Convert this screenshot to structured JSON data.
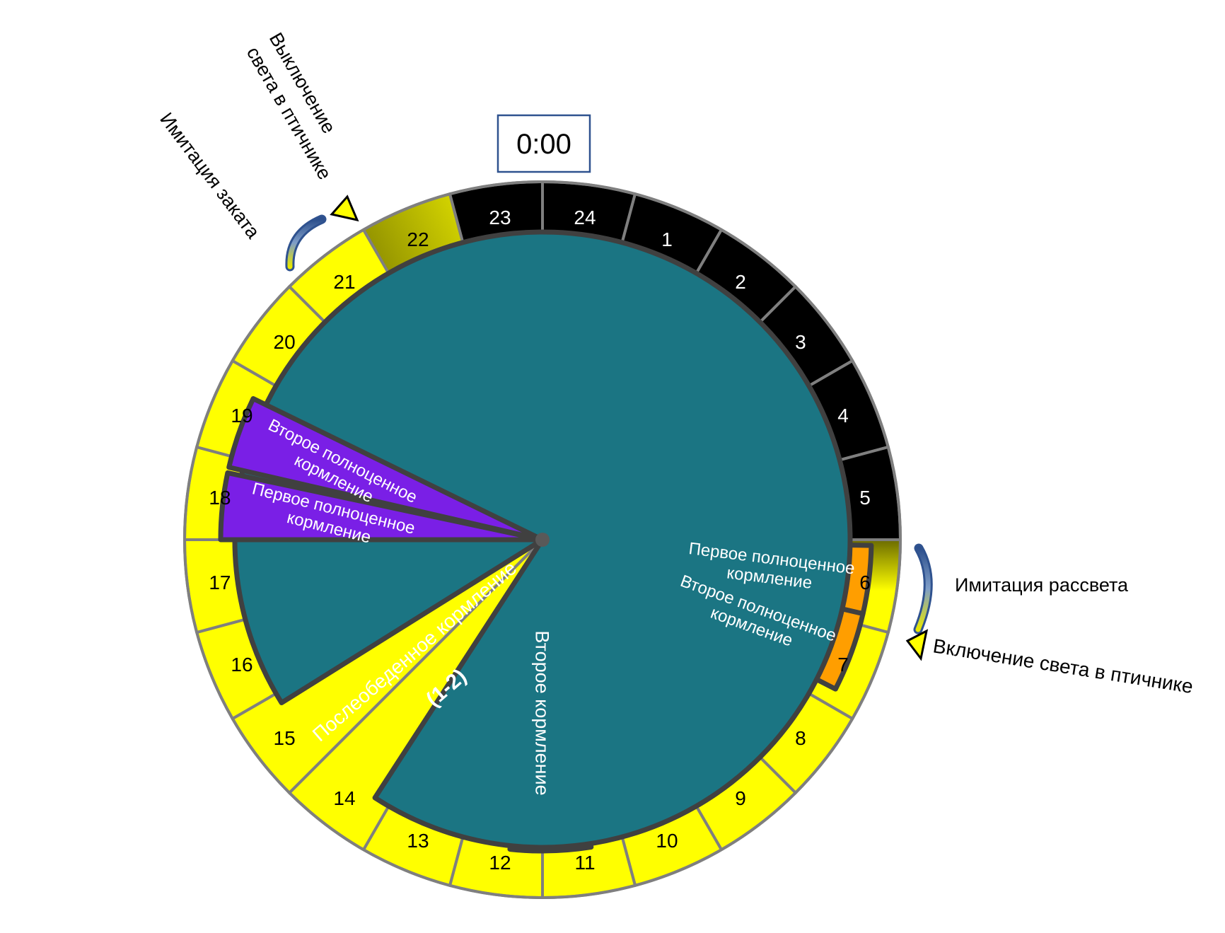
{
  "clock": {
    "label": "0:00"
  },
  "hours": [
    "24",
    "1",
    "2",
    "3",
    "4",
    "5",
    "6",
    "7",
    "8",
    "9",
    "10",
    "11",
    "12",
    "13",
    "14",
    "15",
    "16",
    "17",
    "18",
    "19",
    "20",
    "21",
    "22",
    "23"
  ],
  "sector_colors": {
    "night": "#000000",
    "light": "#ffff00",
    "sunset_from": "#ffff00",
    "sunset_to": "#6b6b00",
    "dawn_from": "#ffff00",
    "dawn_to": "#6b6b00",
    "divider": "#7f7f7f"
  },
  "feedings": {
    "morning_first": {
      "lines": [
        "Первое полноценное",
        "кормление"
      ],
      "color": "#ff9e00"
    },
    "morning_second": {
      "lines": [
        "Второе полноценное",
        "кормление"
      ],
      "color": "#ff9e00"
    },
    "midday_second": {
      "lines": [
        "Второе кормление"
      ],
      "color": "#1e7a00"
    },
    "afternoon": {
      "lines": [
        "Послеобеденное кормление"
      ],
      "note": "(1-2)",
      "color": "#1b7583"
    },
    "evening_first": {
      "lines": [
        "Первое полноценное",
        "кормление"
      ],
      "color": "#7a1fe6"
    },
    "evening_second": {
      "lines": [
        "Второе полноценное",
        "кормление"
      ],
      "color": "#7a1fe6"
    }
  },
  "annotations": {
    "dawn": "Имитация рассвета",
    "light_on": "Включение света в птичнике",
    "sunset": "Имитация заката",
    "light_off": [
      "Выключение",
      "света в птичнике"
    ]
  }
}
